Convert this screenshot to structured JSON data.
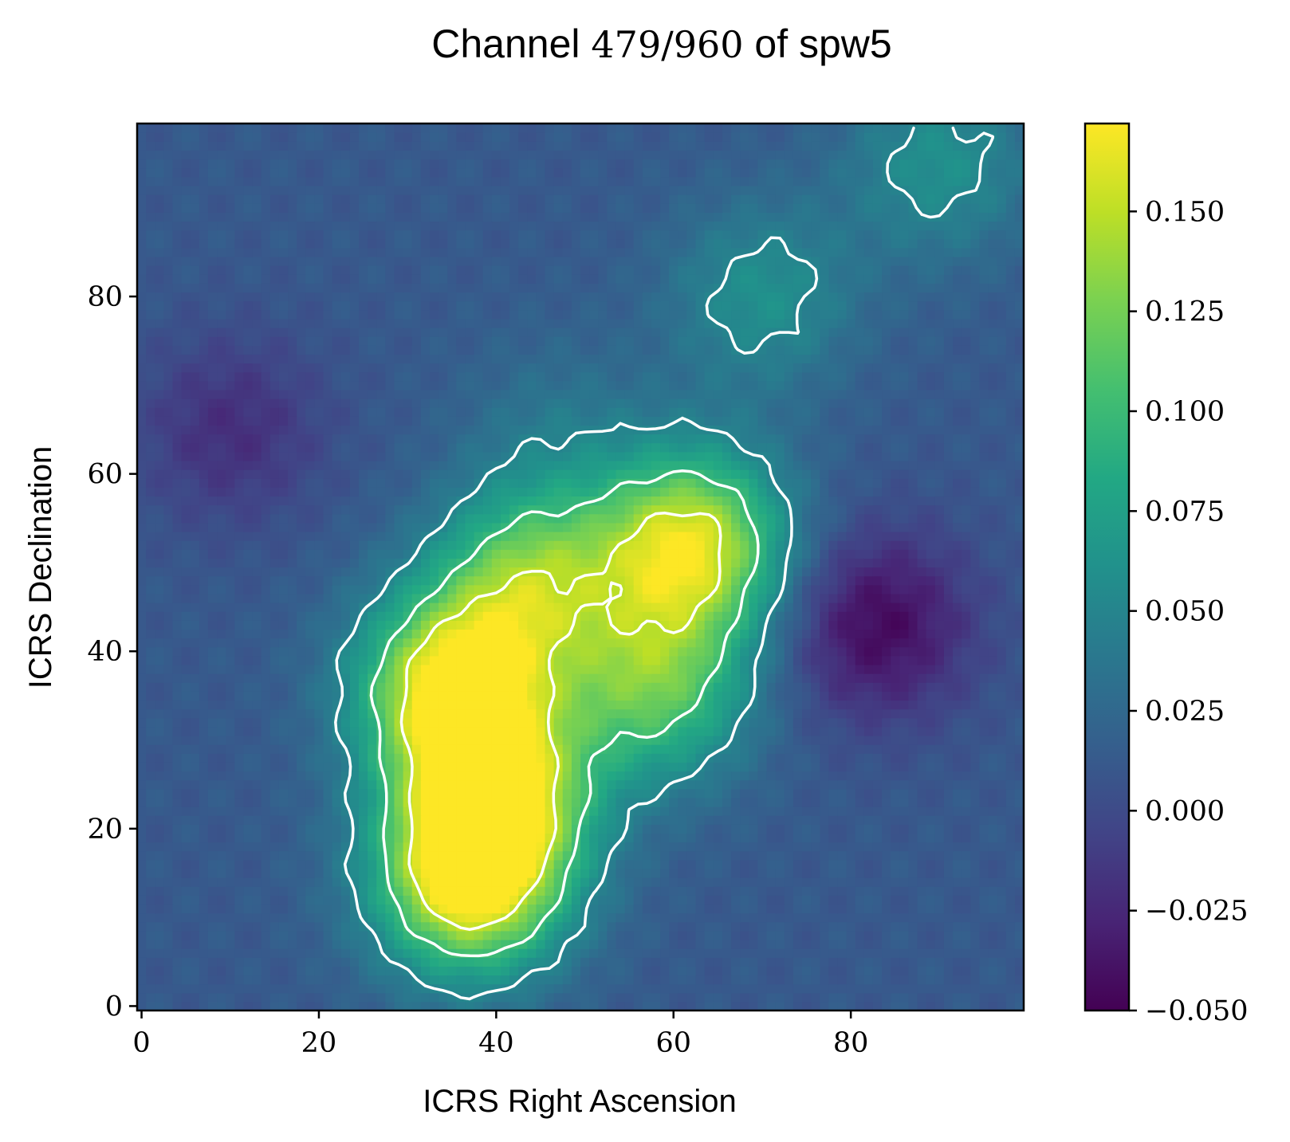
{
  "chart_data": {
    "type": "heatmap",
    "title": {
      "prefix": "Channel ",
      "math": "479/960",
      "suffix": " of spw5"
    },
    "xlabel": "ICRS Right Ascension",
    "ylabel": "ICRS Declination",
    "xlim": [
      -0.5,
      99.5
    ],
    "ylim": [
      -0.5,
      99.5
    ],
    "x_ticks": [
      0,
      20,
      40,
      60,
      80
    ],
    "x_tick_labels": [
      "0",
      "20",
      "40",
      "60",
      "80"
    ],
    "y_ticks": [
      0,
      20,
      40,
      60,
      80
    ],
    "y_tick_labels": [
      "0",
      "20",
      "40",
      "60",
      "80"
    ],
    "colormap": "viridis",
    "colorbar": {
      "vmin": -0.05,
      "vmax": 0.172,
      "ticks": [
        -0.05,
        -0.025,
        0.0,
        0.025,
        0.05,
        0.075,
        0.1,
        0.125,
        0.15
      ],
      "tick_labels": [
        "−0.050",
        "−0.025",
        "0.000",
        "0.025",
        "0.050",
        "0.075",
        "0.100",
        "0.125",
        "0.150"
      ]
    },
    "contour_color": "#ffffff",
    "contour_levels": [
      0.05,
      0.1,
      0.15
    ],
    "features": [
      {
        "x": 35,
        "y": 36,
        "value": 0.165
      },
      {
        "x": 37,
        "y": 14,
        "value": 0.165
      },
      {
        "x": 40,
        "y": 24,
        "value": 0.145
      },
      {
        "x": 62,
        "y": 52,
        "value": 0.16
      },
      {
        "x": 44,
        "y": 48,
        "value": 0.12
      },
      {
        "x": 58,
        "y": 36,
        "value": 0.11
      },
      {
        "x": 47,
        "y": 65,
        "value": 0.035
      },
      {
        "x": 70,
        "y": 80,
        "value": 0.06
      },
      {
        "x": 83,
        "y": 43,
        "value": -0.045
      },
      {
        "x": 10,
        "y": 65,
        "value": -0.02
      },
      {
        "x": 90,
        "y": 95,
        "value": 0.06
      }
    ]
  }
}
